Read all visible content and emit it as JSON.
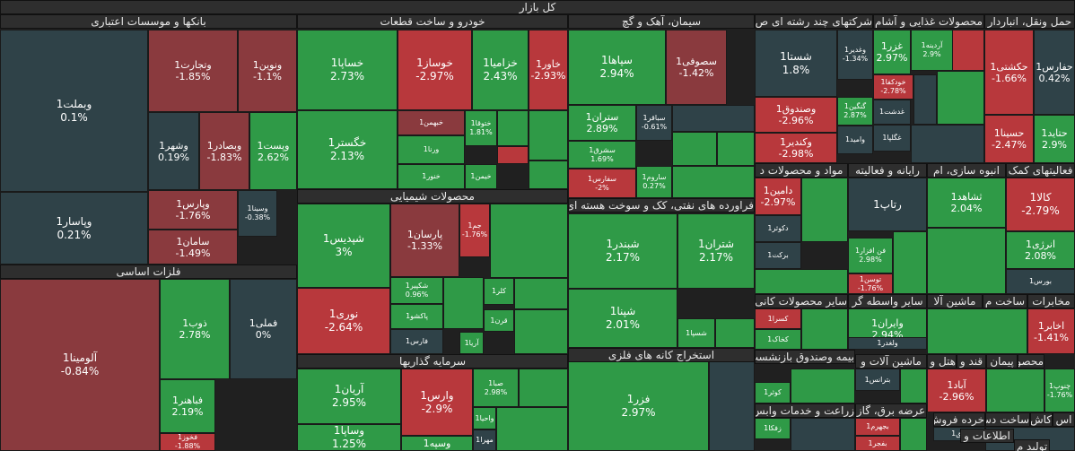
{
  "chart_data": {
    "type": "treemap",
    "title": "کل بازار",
    "colors": {
      "up": "#2f9a47",
      "up_light": "#3dad55",
      "down": "#b8383c",
      "down_mid": "#8a3a3e",
      "neutral": "#2f4248"
    },
    "sectors": [
      {
        "name": "بانکها و موسسات اعتباری",
        "items": [
          {
            "name": "وبملت1",
            "change": "0.1%"
          },
          {
            "name": "وپاسار1",
            "change": "0.21%"
          },
          {
            "name": "وتجارت1",
            "change": "-1.85%"
          },
          {
            "name": "ونوین1",
            "change": "-1.1%"
          },
          {
            "name": "وبصادر1",
            "change": "-1.83%"
          },
          {
            "name": "وشهر1",
            "change": "0.19%"
          },
          {
            "name": "وپست1",
            "change": "2.62%"
          },
          {
            "name": "وپارس1",
            "change": "-1.76%"
          },
          {
            "name": "وسینا1",
            "change": "-0.38%"
          },
          {
            "name": "سامان1",
            "change": "-1.49%"
          }
        ]
      },
      {
        "name": "فلزات اساسی",
        "items": [
          {
            "name": "آلومینا1",
            "change": "-0.84%"
          },
          {
            "name": "ذوب1",
            "change": "2.78%"
          },
          {
            "name": "فملی1",
            "change": "0%"
          },
          {
            "name": "فباهنر1",
            "change": "2.19%"
          },
          {
            "name": "فخوز1",
            "change": "-1.88%"
          }
        ]
      },
      {
        "name": "خودرو و ساخت قطعات",
        "items": [
          {
            "name": "خساپا1",
            "change": "2.73%"
          },
          {
            "name": "خگستر1",
            "change": "2.13%"
          },
          {
            "name": "خوساز1",
            "change": "-2.97%"
          },
          {
            "name": "خزامیا1",
            "change": "2.43%"
          },
          {
            "name": "خاور1",
            "change": "-2.93%"
          },
          {
            "name": "خبهمن1",
            "change": ""
          },
          {
            "name": "ورنا1",
            "change": ""
          },
          {
            "name": "خنور1",
            "change": ""
          },
          {
            "name": "ختوقا1",
            "change": "1.81%"
          },
          {
            "name": "خیمن1",
            "change": ""
          }
        ]
      },
      {
        "name": "محصولات شیمیایی",
        "items": [
          {
            "name": "شپدیس1",
            "change": "3%"
          },
          {
            "name": "نوری1",
            "change": "-2.64%"
          },
          {
            "name": "پارسان1",
            "change": "-1.33%"
          },
          {
            "name": "جم1",
            "change": "-1.76%"
          },
          {
            "name": "شکپیر1",
            "change": "0.96%"
          },
          {
            "name": "پاکشو1",
            "change": ""
          },
          {
            "name": "فارس1",
            "change": ""
          },
          {
            "name": "کلر1",
            "change": ""
          },
          {
            "name": "قرن1",
            "change": ""
          },
          {
            "name": "آریا1",
            "change": ""
          }
        ]
      },
      {
        "name": "سرمایه گذاریها",
        "items": [
          {
            "name": "آریان1",
            "change": "2.95%"
          },
          {
            "name": "وساپا1",
            "change": "1.25%"
          },
          {
            "name": "وارس1",
            "change": "-2.9%"
          },
          {
            "name": "صبا1",
            "change": "2.98%"
          },
          {
            "name": "واحیا1",
            "change": ""
          },
          {
            "name": "مهرا1",
            "change": ""
          },
          {
            "name": "وسپه1",
            "change": ""
          }
        ]
      },
      {
        "name": "سیمان، آهک و گچ",
        "items": [
          {
            "name": "سپاها1",
            "change": "2.94%"
          },
          {
            "name": "سصوفی1",
            "change": "-1.42%"
          },
          {
            "name": "ستران1",
            "change": "2.89%"
          },
          {
            "name": "سباقر1",
            "change": "-0.61%"
          },
          {
            "name": "سشرق1",
            "change": "1.69%"
          },
          {
            "name": "سفارس1",
            "change": "-2%"
          },
          {
            "name": "ساروم1",
            "change": "0.27%"
          }
        ]
      },
      {
        "name": "فراورده های نفتی، کک و سوخت هسته ای",
        "items": [
          {
            "name": "شبندر1",
            "change": "2.17%"
          },
          {
            "name": "شتران1",
            "change": "2.17%"
          },
          {
            "name": "شپنا1",
            "change": "2.01%"
          },
          {
            "name": "شسپا1",
            "change": ""
          }
        ]
      },
      {
        "name": "استخراج کانه های فلزی",
        "items": [
          {
            "name": "فزر1",
            "change": "2.97%"
          }
        ]
      },
      {
        "name": "شرکتهای چند رشته ای ص",
        "items": [
          {
            "name": "شستا1",
            "change": "1.8%"
          },
          {
            "name": "وصندوق1",
            "change": "-2.96%"
          },
          {
            "name": "وکندیر1",
            "change": "-2.98%"
          }
        ]
      },
      {
        "name": "محصولات غذایی و آشام",
        "items": [
          {
            "name": "وغدیر1",
            "change": "-1.34%"
          },
          {
            "name": "غزر1",
            "change": "2.97%"
          },
          {
            "name": "آردینه1",
            "change": "2.9%"
          },
          {
            "name": "گنگین1",
            "change": "2.87%"
          },
          {
            "name": "خودکفا1",
            "change": "-2.78%"
          },
          {
            "name": "غدشت1",
            "change": ""
          },
          {
            "name": "وامید1",
            "change": ""
          },
          {
            "name": "غگلپا1",
            "change": ""
          }
        ]
      },
      {
        "name": "حمل ونقل، انباردار",
        "items": [
          {
            "name": "حکشتی1",
            "change": "-1.66%"
          },
          {
            "name": "حفارس1",
            "change": "0.42%"
          },
          {
            "name": "حسینا1",
            "change": "-2.47%"
          },
          {
            "name": "حتاید1",
            "change": "2.9%"
          }
        ]
      },
      {
        "name": "مواد و محصولات د",
        "items": [
          {
            "name": "دامین1",
            "change": "-2.97%"
          },
          {
            "name": "دکوثر1",
            "change": ""
          },
          {
            "name": "برکت1",
            "change": ""
          }
        ]
      },
      {
        "name": "رایانه و فعالیته",
        "items": [
          {
            "name": "رتاپ1",
            "change": ""
          },
          {
            "name": "فن افزار1",
            "change": "2.98%"
          },
          {
            "name": "توسن1",
            "change": "-1.76%"
          }
        ]
      },
      {
        "name": "انبوه سازی، ام",
        "items": [
          {
            "name": "ثشاهد1",
            "change": "2.04%"
          }
        ]
      },
      {
        "name": "فعالیتهای کمک",
        "items": [
          {
            "name": "کالا1",
            "change": "-2.79%"
          },
          {
            "name": "انرژی1",
            "change": "2.08%"
          },
          {
            "name": "بورس1",
            "change": ""
          }
        ]
      },
      {
        "name": "ماشین آلا",
        "items": []
      },
      {
        "name": "ساخت م",
        "items": []
      },
      {
        "name": "مخابرات",
        "items": [
          {
            "name": "اخابر1",
            "change": "-1.41%"
          }
        ]
      },
      {
        "name": "سایر واسطه گر",
        "items": [
          {
            "name": "وایران1",
            "change": "2.94%"
          },
          {
            "name": "ولغدر1",
            "change": ""
          }
        ]
      },
      {
        "name": "سایر محصولات کانی",
        "items": [
          {
            "name": "کسرا1",
            "change": ""
          },
          {
            "name": "کخاک1",
            "change": ""
          }
        ]
      },
      {
        "name": "بیمه وصندوق بازنشست",
        "items": [
          {
            "name": "کوثر1",
            "change": ""
          }
        ]
      },
      {
        "name": "ماشین آلات و",
        "items": [
          {
            "name": "بترانس1",
            "change": ""
          }
        ]
      },
      {
        "name": "هتل و ر",
        "items": [
          {
            "name": "آباد1",
            "change": "-2.96%"
          }
        ]
      },
      {
        "name": "قند و",
        "items": []
      },
      {
        "name": "پیمان",
        "items": []
      },
      {
        "name": "محصو",
        "items": [
          {
            "name": "چنوپ1",
            "change": "-1.76%"
          }
        ]
      },
      {
        "name": "عرضه برق، گاز",
        "items": [
          {
            "name": "بجهرم1",
            "change": ""
          },
          {
            "name": "بفجر1",
            "change": ""
          }
        ]
      },
      {
        "name": "زراعت و خدمات وابس",
        "items": [
          {
            "name": "زفکا1",
            "change": ""
          }
        ]
      },
      {
        "name": "خرده فروش",
        "items": [
          {
            "name": "افق1",
            "change": ""
          }
        ]
      },
      {
        "name": "ساخت دس",
        "items": []
      },
      {
        "name": "کاش",
        "items": []
      },
      {
        "name": "اس",
        "items": []
      },
      {
        "name": "اطلاعات و",
        "items": []
      },
      {
        "name": "تولید م",
        "items": []
      }
    ]
  }
}
